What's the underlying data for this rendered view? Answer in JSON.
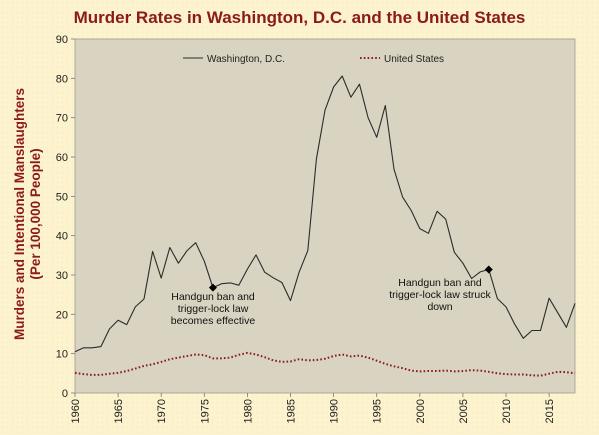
{
  "chart_data": {
    "type": "line",
    "title": "Murder Rates in Washington, D.C. and the United States",
    "ylabel_line1": "Murders and Intentional Manslaughters",
    "ylabel_line2": "(Per 100,000 People)",
    "xlabel": "",
    "xlim": [
      1960,
      2018
    ],
    "ylim": [
      0,
      90
    ],
    "x_ticks": [
      1960,
      1965,
      1970,
      1975,
      1980,
      1985,
      1990,
      1995,
      2000,
      2005,
      2010,
      2015
    ],
    "y_ticks": [
      0,
      10,
      20,
      30,
      40,
      50,
      60,
      70,
      80,
      90
    ],
    "legend_position": "top",
    "grid": false,
    "plot_background": "#d9d4c1",
    "series": [
      {
        "name": "Washington, D.C.",
        "color": "#2b2b2b",
        "style": "solid",
        "x": [
          1960,
          1961,
          1962,
          1963,
          1964,
          1965,
          1966,
          1967,
          1968,
          1969,
          1970,
          1971,
          1972,
          1973,
          1974,
          1975,
          1976,
          1977,
          1978,
          1979,
          1980,
          1981,
          1982,
          1983,
          1984,
          1985,
          1986,
          1987,
          1988,
          1989,
          1990,
          1991,
          1992,
          1993,
          1994,
          1995,
          1996,
          1997,
          1998,
          1999,
          2000,
          2001,
          2002,
          2003,
          2004,
          2005,
          2006,
          2007,
          2008,
          2009,
          2010,
          2011,
          2012,
          2013,
          2014,
          2015,
          2016,
          2017,
          2018
        ],
        "values": [
          10.5,
          11.5,
          11.5,
          11.8,
          16.3,
          18.5,
          17.4,
          21.9,
          23.9,
          36.0,
          29.2,
          37.0,
          33.0,
          36.2,
          38.2,
          33.5,
          26.8,
          27.8,
          28.0,
          27.4,
          31.5,
          35.1,
          30.7,
          29.3,
          28.1,
          23.5,
          30.7,
          36.2,
          59.5,
          71.9,
          77.8,
          80.6,
          75.2,
          78.5,
          70.0,
          65.0,
          73.1,
          56.9,
          49.8,
          46.4,
          41.8,
          40.6,
          46.2,
          44.2,
          35.8,
          33.0,
          29.1,
          30.8,
          31.4,
          24.0,
          21.9,
          17.5,
          13.9,
          15.9,
          15.9,
          24.1,
          20.4,
          16.7,
          22.8
        ]
      },
      {
        "name": "United States",
        "color": "#8b1a1a",
        "style": "dotted",
        "x": [
          1960,
          1961,
          1962,
          1963,
          1964,
          1965,
          1966,
          1967,
          1968,
          1969,
          1970,
          1971,
          1972,
          1973,
          1974,
          1975,
          1976,
          1977,
          1978,
          1979,
          1980,
          1981,
          1982,
          1983,
          1984,
          1985,
          1986,
          1987,
          1988,
          1989,
          1990,
          1991,
          1992,
          1993,
          1994,
          1995,
          1996,
          1997,
          1998,
          1999,
          2000,
          2001,
          2002,
          2003,
          2004,
          2005,
          2006,
          2007,
          2008,
          2009,
          2010,
          2011,
          2012,
          2013,
          2014,
          2015,
          2016,
          2017,
          2018
        ],
        "values": [
          5.1,
          4.8,
          4.6,
          4.6,
          4.9,
          5.1,
          5.6,
          6.2,
          6.9,
          7.3,
          7.9,
          8.6,
          9.0,
          9.4,
          9.8,
          9.6,
          8.8,
          8.8,
          9.0,
          9.7,
          10.2,
          9.8,
          9.1,
          8.3,
          7.9,
          8.0,
          8.6,
          8.3,
          8.4,
          8.7,
          9.4,
          9.8,
          9.3,
          9.5,
          9.0,
          8.2,
          7.4,
          6.8,
          6.3,
          5.7,
          5.5,
          5.6,
          5.6,
          5.7,
          5.5,
          5.6,
          5.8,
          5.7,
          5.4,
          5.0,
          4.8,
          4.7,
          4.7,
          4.5,
          4.4,
          4.9,
          5.4,
          5.3,
          5.0
        ]
      }
    ],
    "annotations": [
      {
        "x": 1976,
        "y": 26.8,
        "lines": [
          "Handgun ban and",
          "trigger-lock law",
          "becomes effective"
        ]
      },
      {
        "x": 2008,
        "y": 31.4,
        "lines": [
          "Handgun ban and",
          "trigger-lock law struck",
          "down"
        ]
      }
    ]
  }
}
